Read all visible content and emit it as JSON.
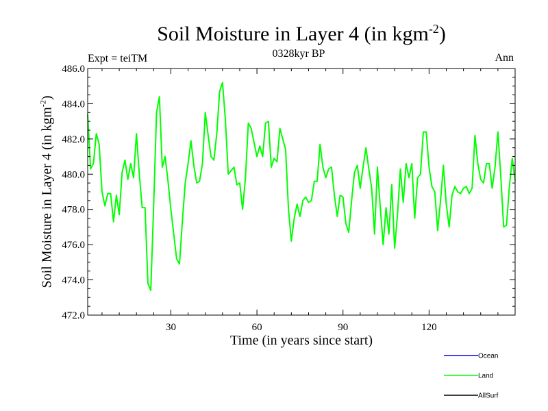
{
  "chart_data": {
    "type": "line",
    "title": "Soil Moisture in Layer 4 (in kgm",
    "title_exp": "-2",
    "title_close": ")",
    "subtitle": "0328kyr BP",
    "left_note": "Expt = teiTM",
    "right_note": "Ann",
    "xlabel": "Time (in years since start)",
    "ylabel": "Soil Moisture in Layer 4 (in kgm",
    "ylabel_exp": "-2",
    "ylabel_close": ")",
    "xlim": [
      1,
      150
    ],
    "ylim": [
      472,
      486
    ],
    "x_ticks": [
      30,
      60,
      90,
      120
    ],
    "x_tick_labels": [
      "30",
      "60",
      "90",
      "120"
    ],
    "y_ticks": [
      472,
      474,
      476,
      478,
      480,
      482,
      484,
      486
    ],
    "y_tick_labels": [
      "472.0",
      "474.0",
      "476.0",
      "478.0",
      "480.0",
      "482.0",
      "484.0",
      "486.0"
    ],
    "series": [
      {
        "name": "Ocean",
        "color": "#0000ff",
        "values": []
      },
      {
        "name": "Land",
        "color": "#00ff00",
        "values": [
          483.4,
          480.3,
          480.6,
          482.3,
          481.7,
          479.0,
          478.2,
          478.9,
          478.9,
          477.3,
          478.8,
          477.7,
          480.1,
          480.8,
          479.7,
          480.6,
          479.8,
          482.3,
          480.0,
          478.1,
          478.1,
          473.8,
          473.4,
          478.2,
          483.5,
          484.4,
          480.4,
          481.0,
          479.6,
          478.0,
          476.6,
          475.2,
          474.9,
          477.3,
          479.5,
          480.6,
          481.9,
          480.5,
          479.5,
          479.6,
          480.6,
          483.5,
          482.2,
          481.0,
          480.8,
          482.3,
          484.7,
          485.2,
          483.1,
          480.0,
          480.2,
          480.4,
          479.4,
          479.5,
          478.0,
          479.8,
          482.9,
          482.6,
          481.8,
          481.0,
          481.6,
          481.0,
          482.9,
          483.0,
          480.4,
          480.9,
          480.7,
          482.6,
          482.0,
          481.4,
          478.0,
          476.2,
          477.5,
          478.3,
          477.6,
          478.5,
          478.7,
          478.4,
          478.5,
          479.6,
          479.6,
          481.7,
          480.4,
          479.8,
          480.3,
          480.4,
          478.8,
          477.6,
          478.8,
          478.7,
          477.2,
          476.7,
          478.5,
          480.1,
          480.5,
          479.2,
          480.4,
          481.5,
          480.3,
          479.2,
          476.6,
          480.4,
          478.1,
          476.0,
          478.1,
          476.6,
          479.4,
          475.8,
          477.7,
          480.3,
          478.4,
          480.6,
          479.8,
          480.6,
          477.5,
          479.8,
          480.0,
          482.4,
          482.4,
          480.4,
          479.3,
          479.0,
          476.8,
          478.5,
          480.5,
          478.3,
          477.0,
          478.8,
          479.3,
          479.0,
          478.9,
          479.2,
          479.3,
          478.9,
          479.2,
          482.2,
          480.6,
          479.7,
          479.5,
          480.6,
          480.6,
          479.2,
          480.4,
          482.4,
          479.9,
          477.0,
          477.1,
          479.3,
          480.9,
          479.6
        ]
      },
      {
        "name": "AllSurf",
        "color": "#000000",
        "values": []
      }
    ],
    "legend_position": "bottom-right"
  }
}
